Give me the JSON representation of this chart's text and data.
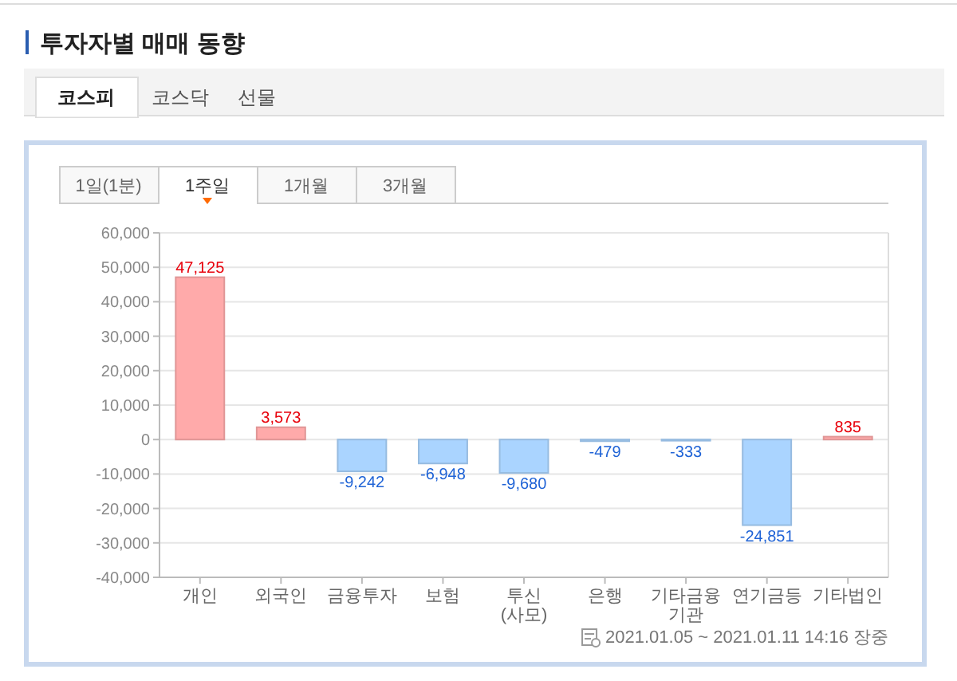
{
  "chart_data": {
    "type": "bar",
    "title": "투자자별 매매 동향",
    "categories": [
      "개인",
      "외국인",
      "금융투자",
      "보험",
      "투신(사모)",
      "은행",
      "기타금융기관",
      "연기금등",
      "기타법인"
    ],
    "values": [
      47125,
      3573,
      -9242,
      -6948,
      -9680,
      -479,
      -333,
      -24851,
      835
    ],
    "colors": [
      "#ffaaaa",
      "#ffaaaa",
      "#aad4ff",
      "#aad4ff",
      "#aad4ff",
      "#aad4ff",
      "#aad4ff",
      "#aad4ff",
      "#ffaaaa"
    ],
    "value_labels": [
      "47,125",
      "3,573",
      "-9,242",
      "-6,948",
      "-9,680",
      "-479",
      "-333",
      "-24,851",
      "835"
    ],
    "ylim": [
      -40000,
      60000
    ],
    "yticks": [
      {
        "value": -40000,
        "label": "-40,000"
      },
      {
        "value": -30000,
        "label": "-30,000"
      },
      {
        "value": -20000,
        "label": "-20,000"
      },
      {
        "value": -10000,
        "label": "-10,000"
      },
      0,
      {
        "value": 10000,
        "label": "10,000"
      },
      {
        "value": 20000,
        "label": "20,000"
      },
      {
        "value": 30000,
        "label": "30,000"
      },
      {
        "value": 40000,
        "label": "40,000"
      },
      {
        "value": 50000,
        "label": "50,000"
      },
      {
        "value": 60000,
        "label": "60,000"
      }
    ],
    "grid": "y",
    "annotations": [
      "코스피",
      "코스닥",
      "선물",
      "1일(1분)",
      "1주일",
      "1개월",
      "3개월",
      "2021.01.05 ~ 2021.01.11 14:16 장중"
    ]
  }
}
